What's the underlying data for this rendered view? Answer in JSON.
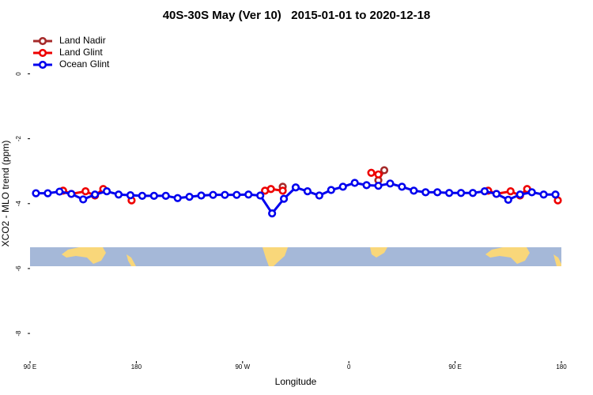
{
  "chart_data": {
    "type": "line",
    "title": "40S-30S May (Ver 10)   2015-01-01 to 2020-12-18",
    "xlabel": "Longitude",
    "ylabel": "XCO2 - MLO trend (ppm)",
    "xlim": [
      90,
      540
    ],
    "ylim": [
      -8.85,
      1.35
    ],
    "xticks": [
      {
        "value": 90,
        "label": "90 E"
      },
      180,
      {
        "value": 270,
        "label": "90 W"
      },
      {
        "value": 360,
        "label": "0"
      },
      {
        "value": 450,
        "label": "90 E"
      },
      {
        "value": 540,
        "label": "180"
      }
    ],
    "yticks": [
      0,
      -2,
      -4,
      -6,
      -8
    ],
    "legend": "top-left",
    "series": [
      {
        "name": "Land Nadir",
        "color": "#a52a2a",
        "x": [
          304,
          330,
          385,
          390
        ],
        "values": [
          -3.48,
          null,
          -3.28,
          -2.97
        ]
      },
      {
        "name": "Land Glint",
        "color": "#ee0000",
        "x": [
          118,
          125,
          137,
          145,
          152,
          165,
          176,
          230,
          289,
          294,
          304,
          340,
          379,
          385,
          430,
          478,
          485,
          497,
          505,
          511,
          525,
          537
        ],
        "values": [
          -3.6,
          -3.7,
          -3.62,
          -3.75,
          -3.55,
          null,
          -3.9,
          null,
          -3.6,
          -3.55,
          -3.6,
          null,
          -3.05,
          -3.1,
          null,
          -3.6,
          -3.7,
          -3.62,
          -3.75,
          -3.55,
          null,
          -3.9
        ]
      },
      {
        "name": "Ocean Glint",
        "color": "#0000ee",
        "x": [
          95,
          105,
          115,
          125,
          135,
          145,
          155,
          165,
          175,
          185,
          195,
          205,
          215,
          225,
          235,
          245,
          255,
          265,
          275,
          285,
          295,
          305,
          315,
          325,
          335,
          345,
          355,
          365,
          375,
          385,
          395,
          405,
          415,
          425,
          435,
          445,
          455,
          465,
          475,
          485,
          495,
          505,
          515,
          525,
          535
        ],
        "values": [
          -3.68,
          -3.68,
          -3.63,
          -3.7,
          -3.87,
          -3.72,
          -3.62,
          -3.72,
          -3.74,
          -3.76,
          -3.76,
          -3.76,
          -3.83,
          -3.79,
          -3.75,
          -3.73,
          -3.73,
          -3.73,
          -3.72,
          -3.75,
          -4.3,
          -3.85,
          -3.5,
          -3.62,
          -3.75,
          -3.58,
          -3.48,
          -3.36,
          -3.43,
          -3.45,
          -3.38,
          -3.48,
          -3.6,
          -3.65,
          -3.65,
          -3.67,
          -3.67,
          -3.67,
          -3.62,
          -3.7,
          -3.88,
          -3.72,
          -3.65,
          -3.72,
          -3.72
        ]
      }
    ]
  }
}
